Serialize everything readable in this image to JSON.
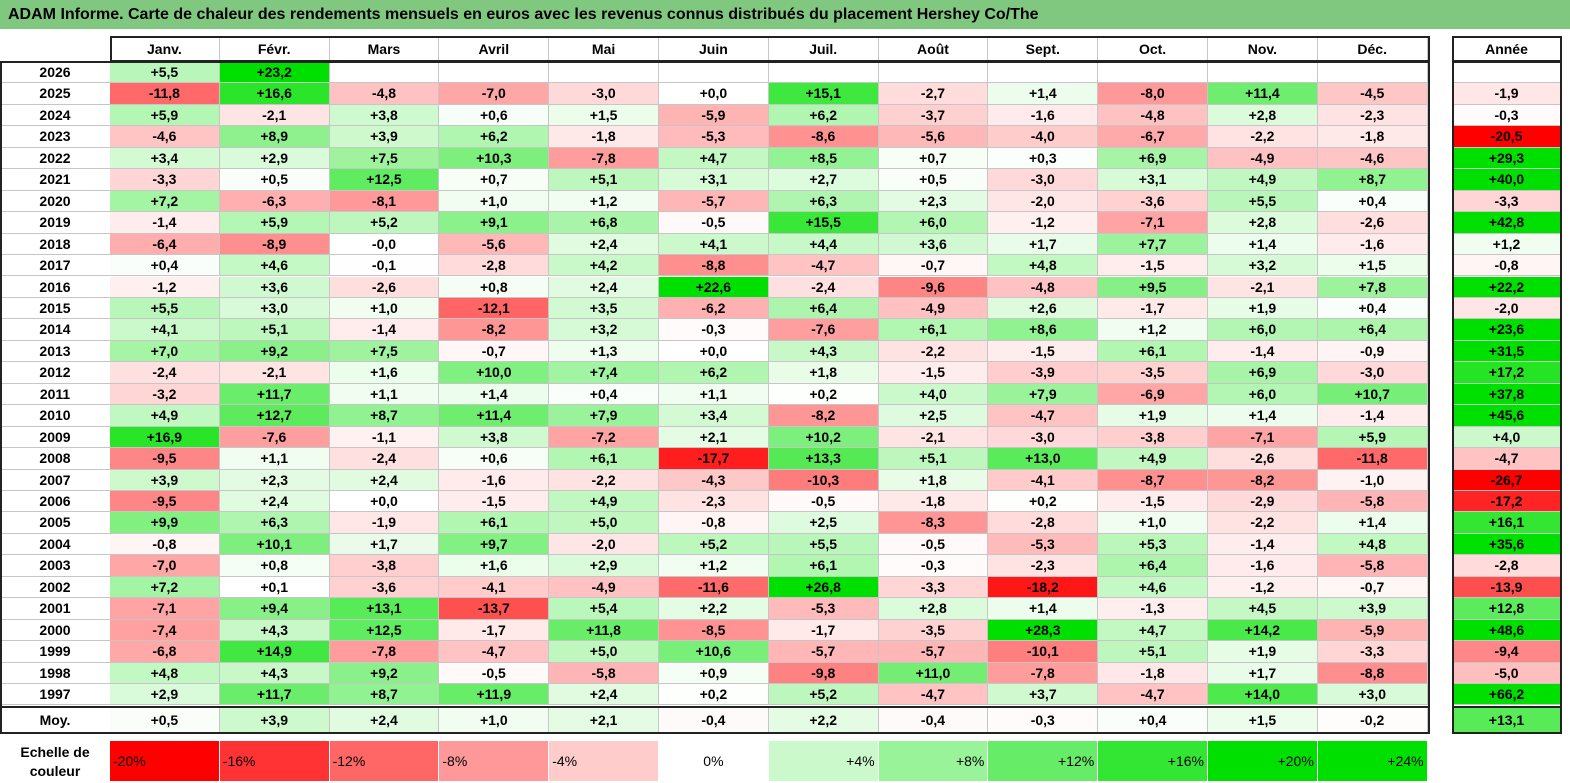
{
  "title": "ADAM Informe. Carte de chaleur des rendements mensuels en euros avec les revenus connus distribués du placement Hershey Co/The",
  "chart_data": {
    "type": "heatmap",
    "months": [
      "Janv.",
      "Févr.",
      "Mars",
      "Avril",
      "Mai",
      "Juin",
      "Juil.",
      "Août",
      "Sept.",
      "Oct.",
      "Nov.",
      "Déc."
    ],
    "year_header": "Année",
    "average_label": "Moy.",
    "rows": [
      {
        "year": "2026",
        "m": [
          "+5,5",
          "+23,2",
          "",
          "",
          "",
          "",
          "",
          "",
          "",
          "",
          "",
          ""
        ],
        "y": ""
      },
      {
        "year": "2025",
        "m": [
          "-11,8",
          "+16,6",
          "-4,8",
          "-7,0",
          "-3,0",
          "+0,0",
          "+15,1",
          "-2,7",
          "+1,4",
          "-8,0",
          "+11,4",
          "-4,5"
        ],
        "y": "-1,9"
      },
      {
        "year": "2024",
        "m": [
          "+5,9",
          "-2,1",
          "+3,8",
          "+0,6",
          "+1,5",
          "-5,9",
          "+6,2",
          "-3,7",
          "-1,6",
          "-4,8",
          "+2,8",
          "-2,3"
        ],
        "y": "-0,3"
      },
      {
        "year": "2023",
        "m": [
          "-4,6",
          "+8,9",
          "+3,9",
          "+6,2",
          "-1,8",
          "-5,3",
          "-8,6",
          "-5,6",
          "-4,0",
          "-6,7",
          "-2,2",
          "-1,8"
        ],
        "y": "-20,5"
      },
      {
        "year": "2022",
        "m": [
          "+3,4",
          "+2,9",
          "+7,5",
          "+10,3",
          "-7,8",
          "+4,7",
          "+8,5",
          "+0,7",
          "+0,3",
          "+6,9",
          "-4,9",
          "-4,6"
        ],
        "y": "+29,3"
      },
      {
        "year": "2021",
        "m": [
          "-3,3",
          "+0,5",
          "+12,5",
          "+0,7",
          "+5,1",
          "+3,1",
          "+2,7",
          "+0,5",
          "-3,0",
          "+3,1",
          "+4,9",
          "+8,7"
        ],
        "y": "+40,0"
      },
      {
        "year": "2020",
        "m": [
          "+7,2",
          "-6,3",
          "-8,1",
          "+1,0",
          "+1,2",
          "-5,7",
          "+6,3",
          "+2,3",
          "-2,0",
          "-3,6",
          "+5,5",
          "+0,4"
        ],
        "y": "-3,3"
      },
      {
        "year": "2019",
        "m": [
          "-1,4",
          "+5,9",
          "+5,2",
          "+9,1",
          "+6,8",
          "-0,5",
          "+15,5",
          "+6,0",
          "-1,2",
          "-7,1",
          "+2,8",
          "-2,6"
        ],
        "y": "+42,8"
      },
      {
        "year": "2018",
        "m": [
          "-6,4",
          "-8,9",
          "-0,0",
          "-5,6",
          "+2,4",
          "+4,1",
          "+4,4",
          "+3,6",
          "+1,7",
          "+7,7",
          "+1,4",
          "-1,6"
        ],
        "y": "+1,2"
      },
      {
        "year": "2017",
        "m": [
          "+0,4",
          "+4,6",
          "-0,1",
          "-2,8",
          "+4,2",
          "-8,8",
          "-4,7",
          "-0,7",
          "+4,8",
          "-1,5",
          "+3,2",
          "+1,5"
        ],
        "y": "-0,8"
      },
      {
        "year": "2016",
        "m": [
          "-1,2",
          "+3,6",
          "-2,6",
          "+0,8",
          "+2,4",
          "+22,6",
          "-2,4",
          "-9,6",
          "-4,8",
          "+9,5",
          "-2,1",
          "+7,8"
        ],
        "y": "+22,2"
      },
      {
        "year": "2015",
        "m": [
          "+5,5",
          "+3,0",
          "+1,0",
          "-12,1",
          "+3,5",
          "-6,2",
          "+6,4",
          "-4,9",
          "+2,6",
          "-1,7",
          "+1,9",
          "+0,4"
        ],
        "y": "-2,0"
      },
      {
        "year": "2014",
        "m": [
          "+4,1",
          "+5,1",
          "-1,4",
          "-8,2",
          "+3,2",
          "-0,3",
          "-7,6",
          "+6,1",
          "+8,6",
          "+1,2",
          "+6,0",
          "+6,4"
        ],
        "y": "+23,6"
      },
      {
        "year": "2013",
        "m": [
          "+7,0",
          "+9,2",
          "+7,5",
          "-0,7",
          "+1,3",
          "+0,0",
          "+4,3",
          "-2,2",
          "-1,5",
          "+6,1",
          "-1,4",
          "-0,9"
        ],
        "y": "+31,5"
      },
      {
        "year": "2012",
        "m": [
          "-2,4",
          "-2,1",
          "+1,6",
          "+10,0",
          "+7,4",
          "+6,2",
          "+1,8",
          "-1,5",
          "-3,9",
          "-3,5",
          "+6,9",
          "-3,0"
        ],
        "y": "+17,2"
      },
      {
        "year": "2011",
        "m": [
          "-3,2",
          "+11,7",
          "+1,1",
          "+1,4",
          "+0,4",
          "+1,1",
          "+0,2",
          "+4,0",
          "+7,9",
          "-6,9",
          "+6,0",
          "+10,7"
        ],
        "y": "+37,8"
      },
      {
        "year": "2010",
        "m": [
          "+4,9",
          "+12,7",
          "+8,7",
          "+11,4",
          "+7,9",
          "+3,4",
          "-8,2",
          "+2,5",
          "-4,7",
          "+1,9",
          "+1,4",
          "-1,4"
        ],
        "y": "+45,6"
      },
      {
        "year": "2009",
        "m": [
          "+16,9",
          "-7,6",
          "-1,1",
          "+3,8",
          "-7,2",
          "+2,1",
          "+10,2",
          "-2,1",
          "-3,0",
          "-3,8",
          "-7,1",
          "+5,9"
        ],
        "y": "+4,0"
      },
      {
        "year": "2008",
        "m": [
          "-9,5",
          "+1,1",
          "-2,4",
          "+0,6",
          "+6,1",
          "-17,7",
          "+13,3",
          "+5,1",
          "+13,0",
          "+4,9",
          "-2,6",
          "-11,8"
        ],
        "y": "-4,7"
      },
      {
        "year": "2007",
        "m": [
          "+3,9",
          "+2,3",
          "+2,4",
          "-1,6",
          "-2,2",
          "-4,3",
          "-10,3",
          "+1,8",
          "-4,1",
          "-8,7",
          "-8,2",
          "-1,0"
        ],
        "y": "-26,7"
      },
      {
        "year": "2006",
        "m": [
          "-9,5",
          "+2,4",
          "+0,0",
          "-1,5",
          "+4,9",
          "-2,3",
          "-0,5",
          "-1,8",
          "+0,2",
          "-1,5",
          "-2,9",
          "-5,8"
        ],
        "y": "-17,2"
      },
      {
        "year": "2005",
        "m": [
          "+9,9",
          "+6,3",
          "-1,9",
          "+6,1",
          "+5,0",
          "-0,8",
          "+2,5",
          "-8,3",
          "-2,8",
          "+1,0",
          "-2,2",
          "+1,4"
        ],
        "y": "+16,1"
      },
      {
        "year": "2004",
        "m": [
          "-0,8",
          "+10,1",
          "+1,7",
          "+9,7",
          "-2,0",
          "+5,2",
          "+5,5",
          "-0,5",
          "-5,3",
          "+5,3",
          "-1,4",
          "+4,8"
        ],
        "y": "+35,6"
      },
      {
        "year": "2003",
        "m": [
          "-7,0",
          "+0,8",
          "-3,8",
          "+1,6",
          "+2,9",
          "+1,2",
          "+6,1",
          "-0,3",
          "-2,3",
          "+6,4",
          "-1,6",
          "-5,8"
        ],
        "y": "-2,8"
      },
      {
        "year": "2002",
        "m": [
          "+7,2",
          "+0,1",
          "-3,6",
          "-4,1",
          "-4,9",
          "-11,6",
          "+26,8",
          "-3,3",
          "-18,2",
          "+4,6",
          "-1,2",
          "-0,7"
        ],
        "y": "-13,9"
      },
      {
        "year": "2001",
        "m": [
          "-7,1",
          "+9,4",
          "+13,1",
          "-13,7",
          "+5,4",
          "+2,2",
          "-5,3",
          "+2,8",
          "+1,4",
          "-1,3",
          "+4,5",
          "+3,9"
        ],
        "y": "+12,8"
      },
      {
        "year": "2000",
        "m": [
          "-7,4",
          "+4,3",
          "+12,5",
          "-1,7",
          "+11,8",
          "-8,5",
          "-1,7",
          "-3,5",
          "+28,3",
          "+4,7",
          "+14,2",
          "-5,9"
        ],
        "y": "+48,6"
      },
      {
        "year": "1999",
        "m": [
          "-6,8",
          "+14,9",
          "-7,8",
          "-4,7",
          "+5,0",
          "+10,6",
          "-5,7",
          "-5,7",
          "-10,1",
          "+5,1",
          "+1,9",
          "-3,3"
        ],
        "y": "-9,4"
      },
      {
        "year": "1998",
        "m": [
          "+4,8",
          "+4,3",
          "+9,2",
          "-0,5",
          "-5,8",
          "+0,9",
          "-9,8",
          "+11,0",
          "-7,8",
          "-1,8",
          "+1,7",
          "-8,8"
        ],
        "y": "-5,0"
      },
      {
        "year": "1997",
        "m": [
          "+2,9",
          "+11,7",
          "+8,7",
          "+11,9",
          "+2,4",
          "+0,2",
          "+5,2",
          "-4,7",
          "+3,7",
          "-4,7",
          "+14,0",
          "+3,0"
        ],
        "y": "+66,2"
      }
    ],
    "average": {
      "m": [
        "+0,5",
        "+3,9",
        "+2,4",
        "+1,0",
        "+2,1",
        "-0,4",
        "+2,2",
        "-0,4",
        "-0,3",
        "+0,4",
        "+1,5",
        "-0,2"
      ],
      "y": "+13,1"
    },
    "scale_label": "Echelle de couleur",
    "scale": [
      {
        "label": "-20%",
        "align": "left"
      },
      {
        "label": "-16%",
        "align": "left"
      },
      {
        "label": "-12%",
        "align": "left"
      },
      {
        "label": "-8%",
        "align": "left"
      },
      {
        "label": "-4%",
        "align": "left"
      },
      {
        "label": "0%",
        "align": "center"
      },
      {
        "label": "+4%",
        "align": "right"
      },
      {
        "label": "+8%",
        "align": "right"
      },
      {
        "label": "+12%",
        "align": "right"
      },
      {
        "label": "+16%",
        "align": "right"
      },
      {
        "label": "+20%",
        "align": "right"
      },
      {
        "label": "+24%",
        "align": "right"
      }
    ],
    "colors": {
      "negative": "#ff0000",
      "positive": "#00e000",
      "neutral": "#ffffff",
      "header": "#80c880"
    }
  }
}
